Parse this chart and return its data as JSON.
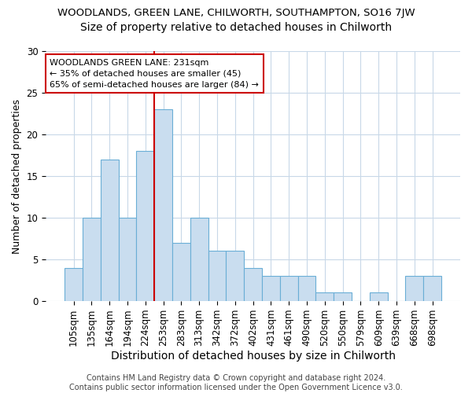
{
  "title": "WOODLANDS, GREEN LANE, CHILWORTH, SOUTHAMPTON, SO16 7JW",
  "subtitle": "Size of property relative to detached houses in Chilworth",
  "xlabel": "Distribution of detached houses by size in Chilworth",
  "ylabel": "Number of detached properties",
  "categories": [
    "105sqm",
    "135sqm",
    "164sqm",
    "194sqm",
    "224sqm",
    "253sqm",
    "283sqm",
    "313sqm",
    "342sqm",
    "372sqm",
    "402sqm",
    "431sqm",
    "461sqm",
    "490sqm",
    "520sqm",
    "550sqm",
    "579sqm",
    "609sqm",
    "639sqm",
    "668sqm",
    "698sqm"
  ],
  "values": [
    4,
    10,
    17,
    10,
    18,
    23,
    7,
    10,
    6,
    6,
    4,
    3,
    3,
    3,
    1,
    1,
    0,
    1,
    0,
    3,
    3
  ],
  "bar_color": "#c9ddef",
  "bar_edge_color": "#6aaed6",
  "marker_index": 5,
  "marker_color": "#cc0000",
  "annotation_text": "WOODLANDS GREEN LANE: 231sqm\n← 35% of detached houses are smaller (45)\n65% of semi-detached houses are larger (84) →",
  "annotation_box_color": "#ffffff",
  "annotation_box_edge": "#cc0000",
  "ylim": [
    0,
    30
  ],
  "yticks": [
    0,
    5,
    10,
    15,
    20,
    25,
    30
  ],
  "footer_text": "Contains HM Land Registry data © Crown copyright and database right 2024.\nContains public sector information licensed under the Open Government Licence v3.0.",
  "title_fontsize": 9.5,
  "subtitle_fontsize": 10,
  "xlabel_fontsize": 10,
  "ylabel_fontsize": 9,
  "tick_fontsize": 8.5,
  "annotation_fontsize": 8,
  "footer_fontsize": 7,
  "background_color": "#ffffff"
}
